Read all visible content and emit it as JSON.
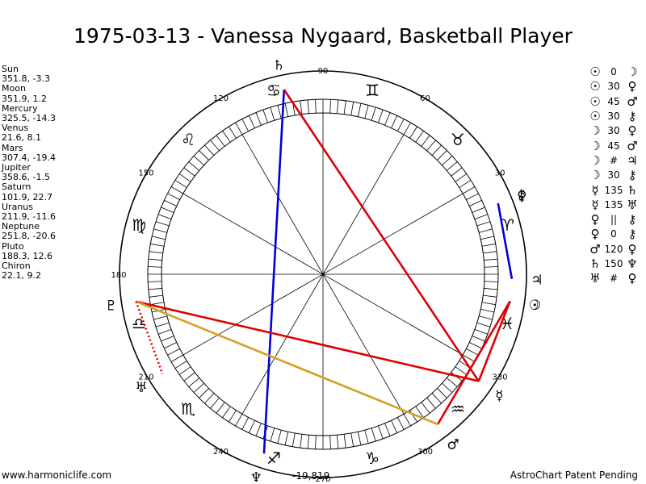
{
  "title": "1975-03-13 - Vanessa Nygaard, Basketball Player",
  "footer": {
    "left": "www.harmoniclife.com",
    "right": "AstroChart Patent Pending",
    "center": "-19,819"
  },
  "planet_list": [
    {
      "name": "Sun",
      "values": "351.8, -3.3"
    },
    {
      "name": "Moon",
      "values": "351.9, 1.2"
    },
    {
      "name": "Mercury",
      "values": "325.5, -14.3"
    },
    {
      "name": "Venus",
      "values": "21.6, 8.1"
    },
    {
      "name": "Mars",
      "values": "307.4, -19.4"
    },
    {
      "name": "Jupiter",
      "values": "358.6, -1.5"
    },
    {
      "name": "Saturn",
      "values": "101.9, 22.7"
    },
    {
      "name": "Uranus",
      "values": "211.9, -11.6"
    },
    {
      "name": "Neptune",
      "values": "251.8, -20.6"
    },
    {
      "name": "Pluto",
      "values": "188.3, 12.6"
    },
    {
      "name": "Chiron",
      "values": "22.1, 9.2"
    }
  ],
  "aspects": [
    {
      "p1": "☉",
      "angle": "0",
      "p2": "☽"
    },
    {
      "p1": "☉",
      "angle": "30",
      "p2": "♀"
    },
    {
      "p1": "☉",
      "angle": "45",
      "p2": "♂"
    },
    {
      "p1": "☉",
      "angle": "30",
      "p2": "⚷"
    },
    {
      "p1": "☽",
      "angle": "30",
      "p2": "♀"
    },
    {
      "p1": "☽",
      "angle": "45",
      "p2": "♂"
    },
    {
      "p1": "☽",
      "angle": "#",
      "p2": "♃"
    },
    {
      "p1": "☽",
      "angle": "30",
      "p2": "⚷"
    },
    {
      "p1": "☿",
      "angle": "135",
      "p2": "♄"
    },
    {
      "p1": "☿",
      "angle": "135",
      "p2": "♅"
    },
    {
      "p1": "♀",
      "angle": "||",
      "p2": "⚷"
    },
    {
      "p1": "♀",
      "angle": "0",
      "p2": "⚷"
    },
    {
      "p1": "♂",
      "angle": "120",
      "p2": "♀"
    },
    {
      "p1": "♄",
      "angle": "150",
      "p2": "♆"
    },
    {
      "p1": "♅",
      "angle": "#",
      "p2": "♀"
    }
  ],
  "wheel": {
    "degree_labels": [
      "90",
      "60",
      "30",
      "330",
      "300",
      "270",
      "240",
      "210",
      "180",
      "150",
      "120"
    ],
    "sign_glyphs": [
      "♈",
      "♉",
      "♊",
      "♋",
      "♌",
      "♍",
      "♎",
      "♏",
      "♐",
      "♑",
      "♒",
      "♓"
    ],
    "planets": [
      {
        "name": "Sun",
        "glyph": "☉",
        "lon": 351.8
      },
      {
        "name": "Moon",
        "glyph": "☽",
        "lon": 351.9
      },
      {
        "name": "Mercury",
        "glyph": "☿",
        "lon": 325.5
      },
      {
        "name": "Venus",
        "glyph": "♀",
        "lon": 21.6
      },
      {
        "name": "Mars",
        "glyph": "♂",
        "lon": 307.4
      },
      {
        "name": "Jupiter",
        "glyph": "♃",
        "lon": 358.6
      },
      {
        "name": "Saturn",
        "glyph": "♄",
        "lon": 101.9
      },
      {
        "name": "Uranus",
        "glyph": "♅",
        "lon": 211.9
      },
      {
        "name": "Neptune",
        "glyph": "♆",
        "lon": 251.8
      },
      {
        "name": "Pluto",
        "glyph": "♇",
        "lon": 188.3
      },
      {
        "name": "Chiron",
        "glyph": "⚷",
        "lon": 22.1
      }
    ],
    "aspect_lines": [
      {
        "from": "Saturn",
        "to": "Neptune",
        "color": "#0000dd",
        "style": "solid"
      },
      {
        "from": "Chiron",
        "to": "Jupiter",
        "color": "#0000dd",
        "style": "solid"
      },
      {
        "from": "Saturn",
        "to": "Mercury",
        "color": "#e00000",
        "style": "solid"
      },
      {
        "from": "Pluto",
        "to": "Mercury",
        "color": "#e00000",
        "style": "solid"
      },
      {
        "from": "Mercury",
        "to": "Sun",
        "color": "#e00000",
        "style": "solid"
      },
      {
        "from": "Mars",
        "to": "Sun",
        "color": "#e00000",
        "style": "solid"
      },
      {
        "from": "Pluto",
        "to": "Mars",
        "color": "#d4a020",
        "style": "solid"
      },
      {
        "from": "Pluto",
        "to": "Uranus",
        "color": "#e00000",
        "style": "dotted"
      }
    ]
  }
}
